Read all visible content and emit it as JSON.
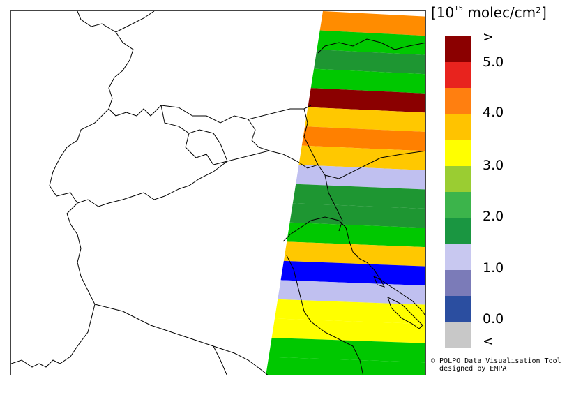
{
  "unit": {
    "prefix": "[10",
    "exp": "15",
    "suffix": " molec/cm²]"
  },
  "legend": {
    "colors": [
      "#8b0000",
      "#e8231e",
      "#ff7f10",
      "#ffc300",
      "#ffff00",
      "#9acd32",
      "#3cb44b",
      "#1a9641",
      "#c8c8f0",
      "#7b7bb8",
      "#2b4ea0",
      "#c8c8c8"
    ],
    "labels": [
      ">",
      "5.0",
      "4.0",
      "3.0",
      "2.0",
      "1.0",
      "0.0",
      "<"
    ]
  },
  "credit": {
    "line1": "© POLPO Data Visualisation Tool",
    "line2": "  designed by EMPA"
  },
  "swath_bands": [
    {
      "color": "#ff8c00"
    },
    {
      "color": "#00c800"
    },
    {
      "color": "#1e9632"
    },
    {
      "color": "#00c800"
    },
    {
      "color": "#8b0000"
    },
    {
      "color": "#ffc800"
    },
    {
      "color": "#ff8000"
    },
    {
      "color": "#ffc800"
    },
    {
      "color": "#c0c0f0"
    },
    {
      "color": "#1e9632"
    },
    {
      "color": "#1e9632"
    },
    {
      "color": "#00c800"
    },
    {
      "color": "#ffc800"
    },
    {
      "color": "#0000ff"
    },
    {
      "color": "#c0c0f0"
    },
    {
      "color": "#ffff00"
    },
    {
      "color": "#ffff00"
    },
    {
      "color": "#00c800"
    },
    {
      "color": "#00c800"
    }
  ]
}
